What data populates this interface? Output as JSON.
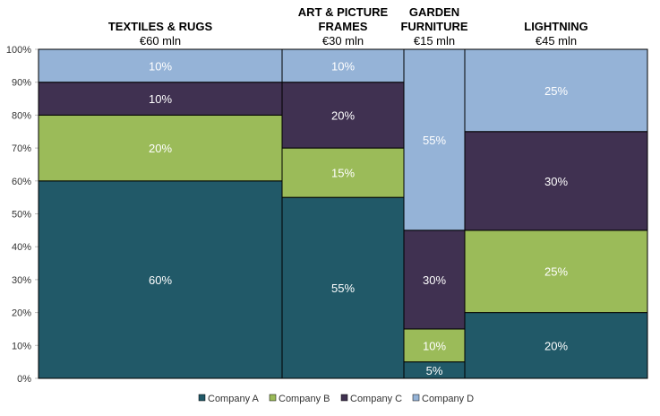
{
  "chart_data": {
    "type": "marimekko",
    "categories": [
      {
        "title_lines": [
          "TEXTILES & RUGS"
        ],
        "subtitle": "€60 mln",
        "market_size": 60
      },
      {
        "title_lines": [
          "ART & PICTURE",
          "FRAMES"
        ],
        "subtitle": "€30 mln",
        "market_size": 30
      },
      {
        "title_lines": [
          "GARDEN",
          "FURNITURE"
        ],
        "subtitle": "€15 mln",
        "market_size": 15
      },
      {
        "title_lines": [
          "LIGHTNING"
        ],
        "subtitle": "€45 mln",
        "market_size": 45
      }
    ],
    "series": [
      {
        "name": "Company A",
        "color": "#215968",
        "values": [
          60,
          55,
          5,
          20
        ],
        "labels": [
          "60%",
          "55%",
          "5%",
          "20%"
        ]
      },
      {
        "name": "Company B",
        "color": "#9BBB59",
        "values": [
          20,
          15,
          10,
          25
        ],
        "labels": [
          "20%",
          "15%",
          "10%",
          "25%"
        ]
      },
      {
        "name": "Company C",
        "color": "#403151",
        "values": [
          10,
          20,
          30,
          30
        ],
        "labels": [
          "10%",
          "20%",
          "30%",
          "30%"
        ]
      },
      {
        "name": "Company D",
        "color": "#95B3D7",
        "values": [
          10,
          10,
          55,
          25
        ],
        "labels": [
          "10%",
          "10%",
          "55%",
          "25%"
        ]
      }
    ],
    "y_ticks": [
      "0%",
      "10%",
      "20%",
      "30%",
      "40%",
      "50%",
      "60%",
      "70%",
      "80%",
      "90%",
      "100%"
    ],
    "ylim": [
      0,
      100
    ],
    "legend_position": "bottom"
  }
}
